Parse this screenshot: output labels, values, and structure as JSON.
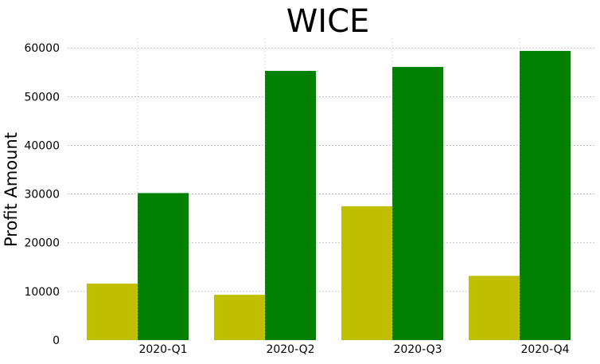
{
  "chart_data": {
    "type": "bar",
    "title": "WICE",
    "xlabel": "",
    "ylabel": "Profit Amount",
    "categories": [
      "2020-Q1",
      "2020-Q2",
      "2020-Q3",
      "2020-Q4"
    ],
    "series": [
      {
        "values": [
          11600,
          9300,
          27500,
          13200
        ],
        "color": "#bfbf00"
      },
      {
        "values": [
          30200,
          55300,
          56100,
          59400
        ],
        "color": "#008000"
      }
    ],
    "ylim": [
      0,
      62000
    ],
    "yticks": [
      0,
      10000,
      20000,
      30000,
      40000,
      50000,
      60000
    ],
    "grid": true,
    "legend": "none"
  }
}
